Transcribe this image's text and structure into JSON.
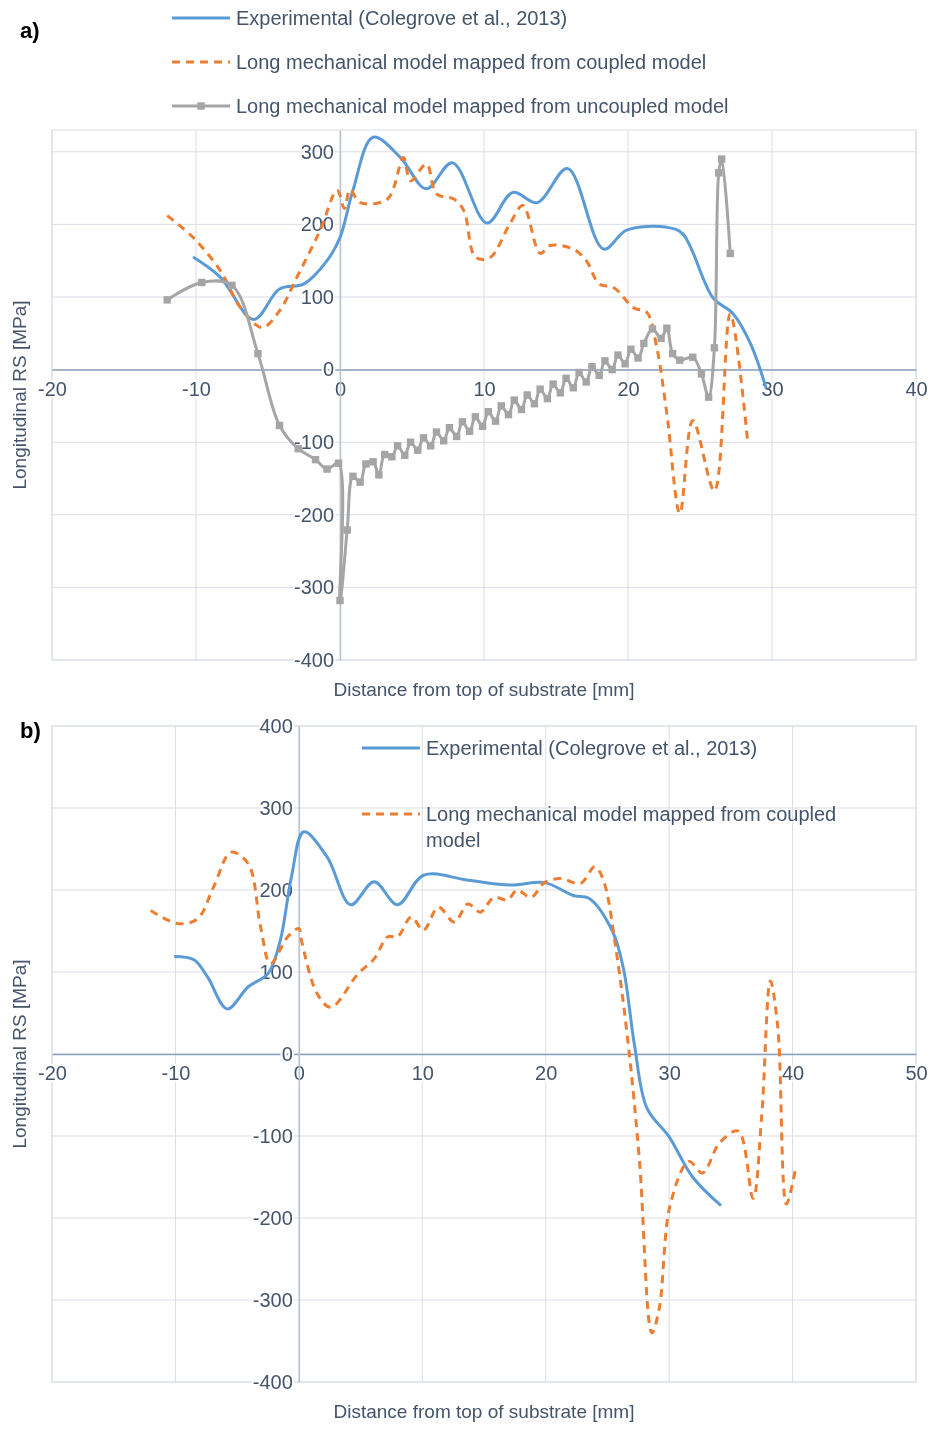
{
  "chart_data": [
    {
      "type": "line",
      "title": "a)",
      "xlabel": "Distance from top of substrate [mm]",
      "ylabel": "Longitudinal RS [MPa]",
      "xlim": [
        -20,
        40
      ],
      "xticks": [
        -20,
        -10,
        0,
        10,
        20,
        30,
        40
      ],
      "ylim": [
        -400,
        330
      ],
      "yticks": [
        -400,
        -300,
        -200,
        -100,
        0,
        100,
        200,
        300
      ],
      "grid": true,
      "legend": "top",
      "series": [
        {
          "name": "Experimental (Colegrove et al., 2013)",
          "color": "#5b9bd5",
          "line_style": "solid",
          "x": [
            -10.2,
            -8.3,
            -6,
            -4.2,
            -2.5,
            -0.9,
            0,
            0.9,
            2.3,
            4.2,
            6,
            7.8,
            10.2,
            12,
            13.7,
            15.8,
            18.3,
            19.9,
            22.7,
            23.8,
            25.9,
            27.3,
            28.5,
            29.6
          ],
          "values": [
            155,
            127,
            69,
            111,
            118,
            150,
            182,
            247,
            320,
            292,
            249,
            285,
            202,
            244,
            230,
            277,
            166,
            192,
            196,
            187,
            99,
            77,
            36,
            -26
          ]
        },
        {
          "name": "Long mechanical model mapped from coupled model",
          "color": "#ed7d31",
          "line_style": "dashed",
          "x": [
            -12,
            -10.2,
            -8.3,
            -6.9,
            -5.4,
            -4.2,
            -3,
            -1.4,
            -0.2,
            0.3,
            0.7,
            1.4,
            3.3,
            4.4,
            4.9,
            6,
            6.7,
            7.9,
            8.6,
            9.4,
            10.4,
            11.8,
            12.7,
            13.9,
            14.6,
            16.2,
            17.1,
            18,
            19,
            20.4,
            21.3,
            22,
            22.7,
            23.6,
            24.5,
            26,
            27.1,
            28.3
          ],
          "values": [
            212,
            182,
            136,
            85,
            58,
            81,
            127,
            191,
            247,
            222,
            248,
            230,
            235,
            292,
            260,
            283,
            242,
            235,
            219,
            155,
            154,
            201,
            226,
            160,
            171,
            166,
            150,
            118,
            113,
            85,
            79,
            30,
            -61,
            -198,
            -70,
            -167,
            77,
            -98
          ]
        },
        {
          "name": "Long mechanical model mapped from uncoupled model",
          "color": "#a5a5a5",
          "line_style": "solid",
          "marker": "square",
          "x": [
            -12,
            -9.6,
            -7.5,
            -5.7,
            -4.2,
            -2.9,
            -1.7,
            -0.9,
            -0.1,
            0,
            0.5,
            0.9,
            1.4,
            1.8,
            2.3,
            2.7,
            3.1,
            3.6,
            4,
            4.5,
            4.9,
            5.4,
            5.8,
            6.3,
            6.7,
            7.2,
            7.6,
            8.1,
            8.5,
            9,
            9.4,
            9.9,
            10.3,
            10.8,
            11.2,
            11.7,
            12.1,
            12.6,
            13,
            13.5,
            13.9,
            14.4,
            14.8,
            15.3,
            15.7,
            16.2,
            16.6,
            17.1,
            17.5,
            18,
            18.4,
            18.9,
            19.3,
            19.8,
            20.2,
            20.7,
            21.1,
            21.7,
            22.3,
            22.7,
            23.1,
            23.6,
            24.5,
            25.1,
            25.6,
            26,
            26.3,
            26.5,
            27.1
          ],
          "values": [
            96,
            120,
            116,
            22,
            -77,
            -109,
            -124,
            -137,
            -129,
            -318,
            -221,
            -147,
            -155,
            -130,
            -127,
            -145,
            -117,
            -120,
            -105,
            -118,
            -100,
            -111,
            -94,
            -105,
            -86,
            -98,
            -80,
            -92,
            -72,
            -85,
            -65,
            -78,
            -58,
            -71,
            -50,
            -62,
            -42,
            -55,
            -35,
            -47,
            -27,
            -40,
            -20,
            -32,
            -12,
            -25,
            -4,
            -17,
            4,
            -8,
            12,
            0,
            20,
            8,
            28,
            16,
            36,
            56,
            43,
            57,
            22,
            13,
            17,
            -6,
            -38,
            30,
            271,
            290,
            160
          ]
        }
      ]
    },
    {
      "type": "line",
      "title": "b)",
      "xlabel": "Distance from top of substrate [mm]",
      "ylabel": "Longitudinal RS [MPa]",
      "xlim": [
        -20,
        50
      ],
      "xticks": [
        -20,
        -10,
        0,
        10,
        20,
        30,
        40,
        50
      ],
      "ylim": [
        -400,
        400
      ],
      "yticks": [
        -400,
        -300,
        -200,
        -100,
        0,
        100,
        200,
        300,
        400
      ],
      "grid": true,
      "legend": "top right",
      "series": [
        {
          "name": "Experimental (Colegrove et al., 2013)",
          "color": "#5b9bd5",
          "line_style": "solid",
          "x": [
            -10.1,
            -8.5,
            -7.4,
            -5.8,
            -4.1,
            -2.5,
            -1.5,
            -0.6,
            0.4,
            2.3,
            4.2,
            6.1,
            8,
            10.1,
            13.7,
            17.2,
            19.9,
            22.3,
            23.5,
            25.4,
            26.3,
            27.2,
            28.2,
            30,
            31.9,
            34.2
          ],
          "values": [
            119,
            115,
            94,
            55,
            82,
            98,
            139,
            216,
            271,
            240,
            182,
            210,
            182,
            218,
            212,
            206,
            209,
            193,
            190,
            150,
            104,
            10,
            -66,
            -101,
            -150,
            -185
          ]
        },
        {
          "name": "Long mechanical model mapped from coupled model",
          "color": "#ed7d31",
          "line_style": "dashed",
          "x": [
            -12,
            -9.8,
            -8.2,
            -6.9,
            -5.5,
            -4.1,
            -3.1,
            -2.3,
            -0.9,
            0,
            0.2,
            1.5,
            2.6,
            4.8,
            6.1,
            7.2,
            8,
            9.1,
            10.1,
            11.3,
            12.6,
            13.7,
            14.7,
            15.8,
            16.9,
            17.7,
            18.8,
            19.9,
            21.2,
            22.8,
            23.9,
            24.2,
            24.8,
            25.7,
            26.7,
            27.6,
            28.6,
            29.2,
            30.1,
            31.6,
            32.7,
            34.1,
            35.6,
            36.8,
            37.5,
            38.2,
            38.8,
            39.5,
            40.2
          ],
          "values": [
            175,
            159,
            165,
            204,
            246,
            232,
            155,
            110,
            143,
            153,
            139,
            73,
            57,
            98,
            116,
            143,
            143,
            167,
            151,
            179,
            161,
            183,
            173,
            191,
            188,
            200,
            191,
            209,
            214,
            208,
            228,
            226,
            206,
            127,
            10,
            -131,
            -340,
            -310,
            -183,
            -131,
            -145,
            -108,
            -94,
            -176,
            -75,
            89,
            33,
            -183,
            -143
          ]
        }
      ]
    }
  ]
}
